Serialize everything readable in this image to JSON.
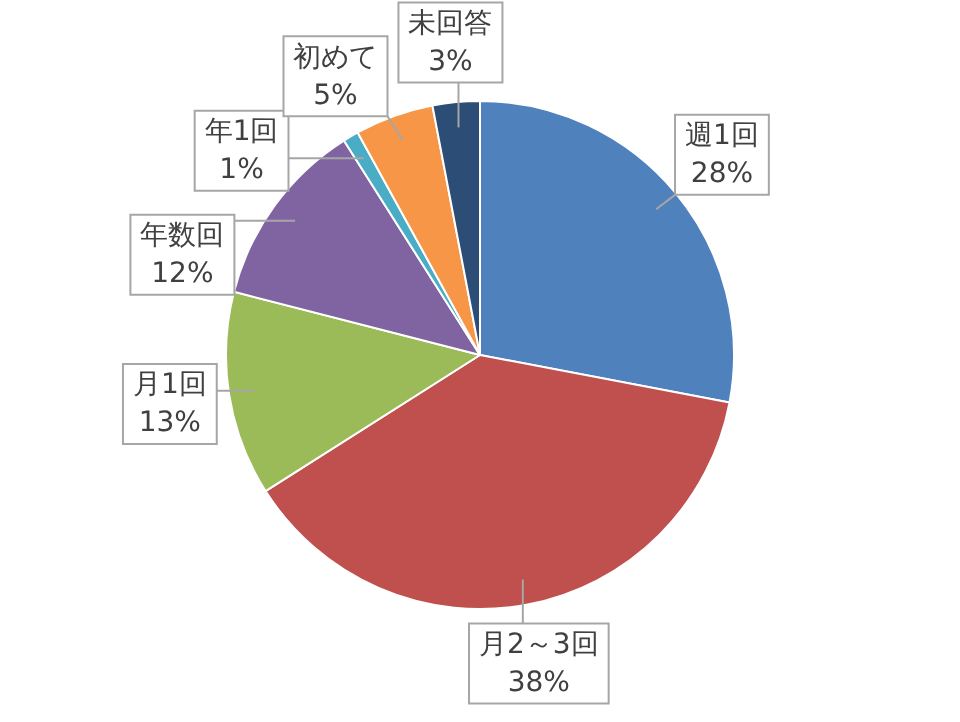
{
  "chart_data": {
    "type": "pie",
    "categories": [
      "週1回",
      "月2～3回",
      "月1回",
      "年数回",
      "年1回",
      "初めて",
      "未回答"
    ],
    "values": [
      28,
      38,
      13,
      12,
      1,
      5,
      3
    ],
    "value_labels": [
      "28%",
      "38%",
      "13%",
      "12%",
      "1%",
      "5%",
      "3%"
    ],
    "colors": [
      "#4f81bd",
      "#c0504d",
      "#9bbb59",
      "#8064a2",
      "#4bacc6",
      "#f79646",
      "#2c4d75"
    ],
    "legend": false
  }
}
